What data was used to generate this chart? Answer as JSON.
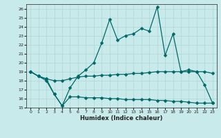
{
  "xlabel": "Humidex (Indice chaleur)",
  "background_color": "#c8eaea",
  "line_color": "#006868",
  "grid_color": "#b0d4d4",
  "x": [
    0,
    1,
    2,
    3,
    4,
    5,
    6,
    7,
    8,
    9,
    10,
    11,
    12,
    13,
    14,
    15,
    16,
    17,
    18,
    19,
    20,
    21,
    22,
    23
  ],
  "y_upper": [
    19.0,
    18.5,
    18.0,
    16.5,
    15.2,
    17.2,
    18.5,
    19.2,
    20.0,
    22.2,
    24.8,
    22.5,
    23.0,
    23.2,
    23.8,
    23.5,
    26.2,
    20.8,
    23.2,
    19.0,
    19.2,
    19.0,
    17.5,
    15.5
  ],
  "y_mid": [
    19.0,
    18.5,
    18.2,
    18.0,
    18.0,
    18.2,
    18.4,
    18.5,
    18.5,
    18.6,
    18.6,
    18.7,
    18.7,
    18.8,
    18.8,
    18.9,
    19.0,
    19.0,
    19.0,
    19.0,
    19.0,
    19.0,
    19.0,
    18.8
  ],
  "y_lower": [
    19.0,
    18.5,
    18.2,
    16.5,
    15.2,
    16.2,
    16.2,
    16.1,
    16.1,
    16.1,
    16.0,
    16.0,
    15.9,
    15.9,
    15.9,
    15.9,
    15.8,
    15.8,
    15.7,
    15.7,
    15.6,
    15.5,
    15.5,
    15.5
  ],
  "ylim": [
    15,
    26.5
  ],
  "xlim": [
    -0.5,
    23.5
  ],
  "yticks": [
    15,
    16,
    17,
    18,
    19,
    20,
    21,
    22,
    23,
    24,
    25,
    26
  ],
  "xticks": [
    0,
    1,
    2,
    3,
    4,
    5,
    6,
    7,
    8,
    9,
    10,
    11,
    12,
    13,
    14,
    15,
    16,
    17,
    18,
    19,
    20,
    21,
    22,
    23
  ],
  "marker_size": 2.5,
  "line_width": 0.9
}
